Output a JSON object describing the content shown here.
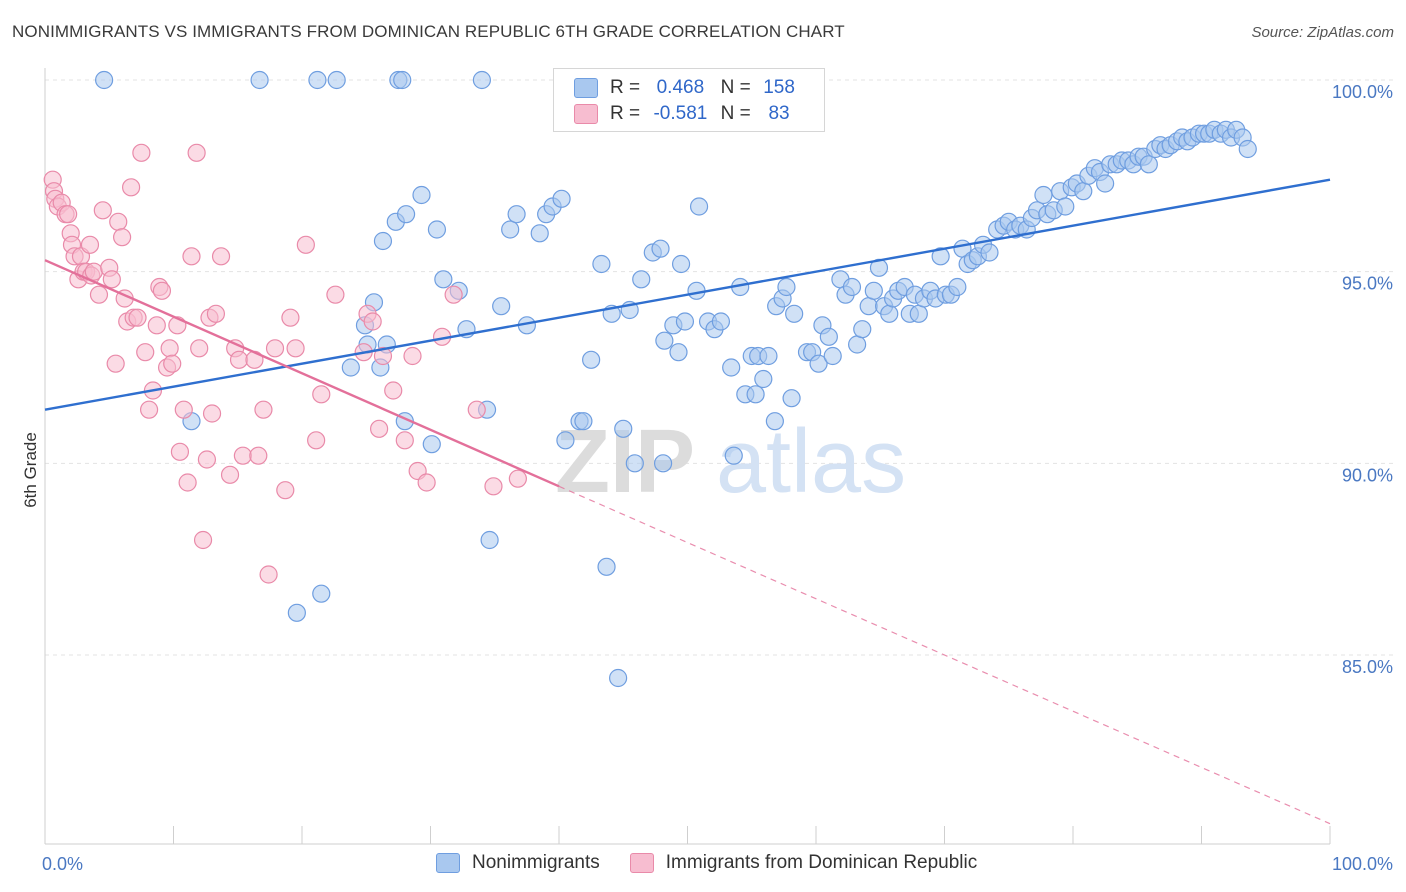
{
  "title": "NONIMMIGRANTS VS IMMIGRANTS FROM DOMINICAN REPUBLIC 6TH GRADE CORRELATION CHART",
  "source": "Source: ZipAtlas.com",
  "watermark": {
    "zip": "ZIP",
    "atlas": "atlas"
  },
  "legend_top": {
    "rows": [
      {
        "r_label": "R =",
        "r_value": "0.468",
        "n_label": "N =",
        "n_value": "158",
        "color": "#a9c8ef",
        "stroke": "#6f9ee0"
      },
      {
        "r_label": "R =",
        "r_value": "-0.581",
        "n_label": "N =",
        "n_value": "83",
        "color": "#f7bdd0",
        "stroke": "#e98aa9"
      }
    ]
  },
  "legend_bottom": [
    {
      "label": "Nonimmigrants",
      "color": "#a9c8ef",
      "stroke": "#6f9ee0"
    },
    {
      "label": "Immigrants from Dominican Republic",
      "color": "#f7bdd0",
      "stroke": "#e98aa9"
    }
  ],
  "chart_data": {
    "type": "scatter",
    "title": "NONIMMIGRANTS VS IMMIGRANTS FROM DOMINICAN REPUBLIC 6TH GRADE CORRELATION CHART",
    "xlabel": "",
    "ylabel": "6th Grade",
    "xlim": [
      0,
      100
    ],
    "ylim": [
      80.5,
      101
    ],
    "x_tick_labels": [
      {
        "value": 0,
        "label": "0.0%"
      },
      {
        "value": 100,
        "label": "100.0%"
      }
    ],
    "y_tick_labels": [
      {
        "value": 100,
        "label": "100.0%"
      },
      {
        "value": 95,
        "label": "95.0%"
      },
      {
        "value": 90,
        "label": "90.0%"
      },
      {
        "value": 85,
        "label": "85.0%"
      }
    ],
    "grid": "horizontal dashed",
    "series": [
      {
        "name": "Nonimmigrants",
        "color": "#a9c8ef",
        "stroke": "#6f9ee0",
        "trend": {
          "x": [
            0,
            100
          ],
          "y": [
            91.4,
            97.4
          ],
          "color": "#2f6fcf"
        },
        "points": [
          [
            4.6,
            100
          ],
          [
            16.7,
            100
          ],
          [
            21.2,
            100
          ],
          [
            22.7,
            100
          ],
          [
            27.5,
            100
          ],
          [
            27.8,
            100
          ],
          [
            34.0,
            100
          ],
          [
            11.4,
            91.1
          ],
          [
            19.6,
            86.1
          ],
          [
            21.5,
            86.6
          ],
          [
            23.8,
            92.5
          ],
          [
            24.9,
            93.6
          ],
          [
            25.1,
            93.1
          ],
          [
            25.6,
            94.2
          ],
          [
            26.1,
            92.5
          ],
          [
            26.3,
            95.8
          ],
          [
            26.6,
            93.1
          ],
          [
            27.3,
            96.3
          ],
          [
            28.0,
            91.1
          ],
          [
            28.1,
            96.5
          ],
          [
            29.3,
            97.0
          ],
          [
            30.1,
            90.5
          ],
          [
            30.5,
            96.1
          ],
          [
            31.0,
            94.8
          ],
          [
            32.2,
            94.5
          ],
          [
            32.8,
            93.5
          ],
          [
            34.4,
            91.4
          ],
          [
            34.6,
            88.0
          ],
          [
            35.5,
            94.1
          ],
          [
            36.2,
            96.1
          ],
          [
            36.7,
            96.5
          ],
          [
            37.5,
            93.6
          ],
          [
            38.5,
            96.0
          ],
          [
            39.0,
            96.5
          ],
          [
            39.5,
            96.7
          ],
          [
            40.2,
            96.9
          ],
          [
            40.5,
            90.6
          ],
          [
            41.6,
            91.1
          ],
          [
            41.9,
            91.1
          ],
          [
            42.5,
            92.7
          ],
          [
            43.3,
            95.2
          ],
          [
            43.7,
            87.3
          ],
          [
            44.1,
            93.9
          ],
          [
            44.6,
            84.4
          ],
          [
            45.0,
            90.9
          ],
          [
            45.5,
            94.0
          ],
          [
            45.9,
            90.0
          ],
          [
            46.4,
            94.8
          ],
          [
            47.3,
            95.5
          ],
          [
            47.9,
            95.6
          ],
          [
            48.1,
            90.0
          ],
          [
            48.2,
            93.2
          ],
          [
            48.9,
            93.6
          ],
          [
            49.3,
            92.9
          ],
          [
            49.5,
            95.2
          ],
          [
            49.8,
            93.7
          ],
          [
            50.7,
            94.5
          ],
          [
            50.9,
            96.7
          ],
          [
            51.6,
            93.7
          ],
          [
            52.1,
            93.5
          ],
          [
            52.6,
            93.7
          ],
          [
            53.4,
            92.5
          ],
          [
            53.6,
            90.2
          ],
          [
            54.1,
            94.6
          ],
          [
            54.5,
            91.8
          ],
          [
            55.0,
            92.8
          ],
          [
            55.3,
            91.8
          ],
          [
            55.5,
            92.8
          ],
          [
            55.9,
            92.2
          ],
          [
            56.3,
            92.8
          ],
          [
            56.8,
            91.1
          ],
          [
            56.9,
            94.1
          ],
          [
            57.4,
            94.3
          ],
          [
            57.7,
            94.6
          ],
          [
            58.1,
            91.7
          ],
          [
            58.3,
            93.9
          ],
          [
            59.3,
            92.9
          ],
          [
            59.7,
            92.9
          ],
          [
            60.2,
            92.6
          ],
          [
            60.5,
            93.6
          ],
          [
            61.0,
            93.3
          ],
          [
            61.3,
            92.8
          ],
          [
            61.9,
            94.8
          ],
          [
            62.3,
            94.4
          ],
          [
            62.8,
            94.6
          ],
          [
            63.2,
            93.1
          ],
          [
            63.6,
            93.5
          ],
          [
            64.1,
            94.1
          ],
          [
            64.5,
            94.5
          ],
          [
            64.9,
            95.1
          ],
          [
            65.3,
            94.1
          ],
          [
            65.7,
            93.9
          ],
          [
            66.0,
            94.3
          ],
          [
            66.4,
            94.5
          ],
          [
            66.9,
            94.6
          ],
          [
            67.3,
            93.9
          ],
          [
            67.7,
            94.4
          ],
          [
            68.0,
            93.9
          ],
          [
            68.4,
            94.3
          ],
          [
            68.9,
            94.5
          ],
          [
            69.3,
            94.3
          ],
          [
            69.7,
            95.4
          ],
          [
            70.1,
            94.4
          ],
          [
            70.5,
            94.4
          ],
          [
            71.0,
            94.6
          ],
          [
            71.4,
            95.6
          ],
          [
            71.8,
            95.2
          ],
          [
            72.2,
            95.3
          ],
          [
            72.6,
            95.4
          ],
          [
            73.0,
            95.7
          ],
          [
            73.5,
            95.5
          ],
          [
            74.1,
            96.1
          ],
          [
            74.6,
            96.2
          ],
          [
            75.0,
            96.3
          ],
          [
            75.5,
            96.1
          ],
          [
            75.9,
            96.2
          ],
          [
            76.4,
            96.1
          ],
          [
            76.8,
            96.4
          ],
          [
            77.2,
            96.6
          ],
          [
            77.7,
            97.0
          ],
          [
            78.0,
            96.5
          ],
          [
            78.5,
            96.6
          ],
          [
            79.0,
            97.1
          ],
          [
            79.4,
            96.7
          ],
          [
            79.9,
            97.2
          ],
          [
            80.3,
            97.3
          ],
          [
            80.8,
            97.1
          ],
          [
            81.2,
            97.5
          ],
          [
            81.7,
            97.7
          ],
          [
            82.1,
            97.6
          ],
          [
            82.5,
            97.3
          ],
          [
            82.9,
            97.8
          ],
          [
            83.4,
            97.8
          ],
          [
            83.8,
            97.9
          ],
          [
            84.3,
            97.9
          ],
          [
            84.7,
            97.8
          ],
          [
            85.1,
            98.0
          ],
          [
            85.5,
            98.0
          ],
          [
            85.9,
            97.8
          ],
          [
            86.4,
            98.2
          ],
          [
            86.8,
            98.3
          ],
          [
            87.2,
            98.2
          ],
          [
            87.6,
            98.3
          ],
          [
            88.1,
            98.4
          ],
          [
            88.5,
            98.5
          ],
          [
            88.9,
            98.4
          ],
          [
            89.3,
            98.5
          ],
          [
            89.8,
            98.6
          ],
          [
            90.2,
            98.6
          ],
          [
            90.6,
            98.6
          ],
          [
            91.0,
            98.7
          ],
          [
            91.5,
            98.6
          ],
          [
            91.9,
            98.7
          ],
          [
            92.3,
            98.5
          ],
          [
            92.7,
            98.7
          ],
          [
            93.2,
            98.5
          ],
          [
            93.6,
            98.2
          ]
        ]
      },
      {
        "name": "Immigrants from Dominican Republic",
        "color": "#f7bdd0",
        "stroke": "#e98aa9",
        "trend": {
          "x": [
            0,
            40
          ],
          "y": [
            95.3,
            89.4
          ],
          "color": "#e3709a"
        },
        "trend_extension": {
          "x": [
            40,
            100
          ],
          "y": [
            89.4,
            80.6
          ]
        },
        "points": [
          [
            0.6,
            97.4
          ],
          [
            0.7,
            97.1
          ],
          [
            0.8,
            96.9
          ],
          [
            1.0,
            96.7
          ],
          [
            1.3,
            96.8
          ],
          [
            1.6,
            96.5
          ],
          [
            1.8,
            96.5
          ],
          [
            2.0,
            96.0
          ],
          [
            2.1,
            95.7
          ],
          [
            2.3,
            95.4
          ],
          [
            2.6,
            94.8
          ],
          [
            2.8,
            95.4
          ],
          [
            3.0,
            95.0
          ],
          [
            3.2,
            95.0
          ],
          [
            3.5,
            95.7
          ],
          [
            3.6,
            94.9
          ],
          [
            3.8,
            95.0
          ],
          [
            4.2,
            94.4
          ],
          [
            4.5,
            96.6
          ],
          [
            5.0,
            95.1
          ],
          [
            5.2,
            94.8
          ],
          [
            5.5,
            92.6
          ],
          [
            5.7,
            96.3
          ],
          [
            6.0,
            95.9
          ],
          [
            6.2,
            94.3
          ],
          [
            6.4,
            93.7
          ],
          [
            6.7,
            97.2
          ],
          [
            6.9,
            93.8
          ],
          [
            7.2,
            93.8
          ],
          [
            7.5,
            98.1
          ],
          [
            7.8,
            92.9
          ],
          [
            8.1,
            91.4
          ],
          [
            8.4,
            91.9
          ],
          [
            8.7,
            93.6
          ],
          [
            8.9,
            94.6
          ],
          [
            9.1,
            94.5
          ],
          [
            9.5,
            92.5
          ],
          [
            9.7,
            93.0
          ],
          [
            9.9,
            92.6
          ],
          [
            10.3,
            93.6
          ],
          [
            10.5,
            90.3
          ],
          [
            10.8,
            91.4
          ],
          [
            11.1,
            89.5
          ],
          [
            11.4,
            95.4
          ],
          [
            11.8,
            98.1
          ],
          [
            12.0,
            93.0
          ],
          [
            12.3,
            88.0
          ],
          [
            12.6,
            90.1
          ],
          [
            12.8,
            93.8
          ],
          [
            13.0,
            91.3
          ],
          [
            13.3,
            93.9
          ],
          [
            13.7,
            95.4
          ],
          [
            14.4,
            89.7
          ],
          [
            14.8,
            93.0
          ],
          [
            15.1,
            92.7
          ],
          [
            15.4,
            90.2
          ],
          [
            16.3,
            92.7
          ],
          [
            16.6,
            90.2
          ],
          [
            17.0,
            91.4
          ],
          [
            17.4,
            87.1
          ],
          [
            17.9,
            93.0
          ],
          [
            18.7,
            89.3
          ],
          [
            19.1,
            93.8
          ],
          [
            19.5,
            93.0
          ],
          [
            20.3,
            95.7
          ],
          [
            21.1,
            90.6
          ],
          [
            21.5,
            91.8
          ],
          [
            22.6,
            94.4
          ],
          [
            24.8,
            92.9
          ],
          [
            25.1,
            93.9
          ],
          [
            25.5,
            93.7
          ],
          [
            26.0,
            90.9
          ],
          [
            26.3,
            92.8
          ],
          [
            27.1,
            91.9
          ],
          [
            28.0,
            90.6
          ],
          [
            28.6,
            92.8
          ],
          [
            29.0,
            89.8
          ],
          [
            29.7,
            89.5
          ],
          [
            30.9,
            93.3
          ],
          [
            31.8,
            94.4
          ],
          [
            33.6,
            91.4
          ],
          [
            34.9,
            89.4
          ],
          [
            36.8,
            89.6
          ]
        ]
      }
    ]
  }
}
